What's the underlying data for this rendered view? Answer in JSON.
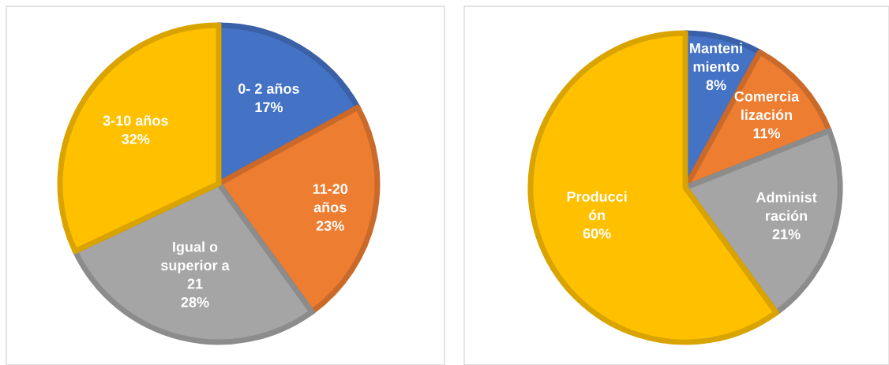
{
  "chart_data": [
    {
      "type": "pie",
      "categories": [
        "0- 2 años",
        "11-20\naños",
        "Igual o\nsuperior a\n21",
        "3-10 años"
      ],
      "values": [
        17,
        23,
        28,
        32
      ],
      "colors": [
        "#4472c4",
        "#ed7d31",
        "#a5a5a5",
        "#ffc000"
      ],
      "value_labels": [
        "17%",
        "23%",
        "28%",
        "32%"
      ],
      "legend": false
    },
    {
      "type": "pie",
      "categories": [
        "Manteni\nmiento",
        "Comercia\nlización",
        "Administ\nración",
        "Producci\nón"
      ],
      "values": [
        8,
        11,
        21,
        60
      ],
      "colors": [
        "#4472c4",
        "#ed7d31",
        "#a5a5a5",
        "#ffc000"
      ],
      "value_labels": [
        "8%",
        "11%",
        "21%",
        "60%"
      ],
      "legend": false
    }
  ]
}
